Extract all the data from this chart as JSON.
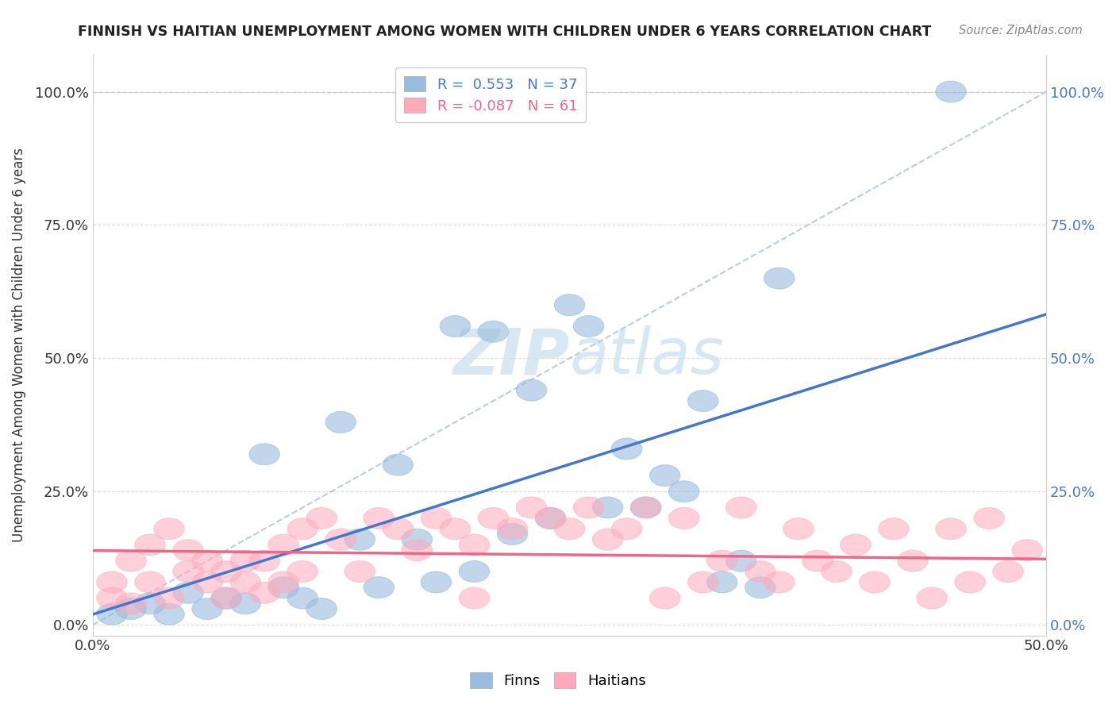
{
  "title": "FINNISH VS HAITIAN UNEMPLOYMENT AMONG WOMEN WITH CHILDREN UNDER 6 YEARS CORRELATION CHART",
  "source": "Source: ZipAtlas.com",
  "ylabel": "Unemployment Among Women with Children Under 6 years",
  "y_tick_labels": [
    "0.0%",
    "25.0%",
    "50.0%",
    "75.0%",
    "100.0%"
  ],
  "y_tick_values": [
    0,
    25,
    50,
    75,
    100
  ],
  "xlim": [
    0,
    50
  ],
  "ylim": [
    -2,
    107
  ],
  "legend_blue_label": "R =  0.553   N = 37",
  "legend_pink_label": "R = -0.087   N = 61",
  "legend_label_finns": "Finns",
  "legend_label_haitians": "Haitians",
  "blue_R": 0.553,
  "pink_R": -0.087,
  "blue_color": "#99BBDD",
  "pink_color": "#FFAABB",
  "blue_line_color": "#4477CC",
  "pink_line_color": "#EE6688",
  "ref_line_color": "#BBCCDD",
  "watermark_color": "#D0E4F0",
  "blue_points_x": [
    1,
    2,
    3,
    4,
    5,
    6,
    7,
    8,
    9,
    10,
    11,
    12,
    13,
    14,
    15,
    16,
    17,
    18,
    19,
    20,
    21,
    22,
    23,
    24,
    25,
    26,
    27,
    28,
    29,
    30,
    31,
    32,
    33,
    34,
    35,
    36,
    45
  ],
  "blue_points_y": [
    2,
    3,
    4,
    2,
    6,
    3,
    5,
    4,
    32,
    7,
    5,
    3,
    38,
    16,
    7,
    30,
    16,
    8,
    56,
    10,
    55,
    17,
    44,
    20,
    60,
    56,
    22,
    33,
    22,
    28,
    25,
    42,
    8,
    12,
    7,
    65,
    100
  ],
  "pink_points_x": [
    1,
    1,
    2,
    2,
    3,
    3,
    4,
    4,
    5,
    5,
    6,
    6,
    7,
    7,
    8,
    8,
    9,
    9,
    10,
    10,
    11,
    11,
    12,
    13,
    14,
    15,
    16,
    17,
    18,
    19,
    20,
    20,
    21,
    22,
    23,
    24,
    25,
    26,
    27,
    28,
    29,
    30,
    31,
    32,
    33,
    34,
    35,
    36,
    37,
    38,
    39,
    40,
    41,
    42,
    43,
    44,
    45,
    46,
    47,
    48,
    49
  ],
  "pink_points_y": [
    5,
    8,
    4,
    12,
    15,
    8,
    5,
    18,
    10,
    14,
    12,
    8,
    5,
    10,
    12,
    8,
    6,
    12,
    8,
    15,
    18,
    10,
    20,
    16,
    10,
    20,
    18,
    14,
    20,
    18,
    15,
    5,
    20,
    18,
    22,
    20,
    18,
    22,
    16,
    18,
    22,
    5,
    20,
    8,
    12,
    22,
    10,
    8,
    18,
    12,
    10,
    15,
    8,
    18,
    12,
    5,
    18,
    8,
    20,
    10,
    14
  ]
}
